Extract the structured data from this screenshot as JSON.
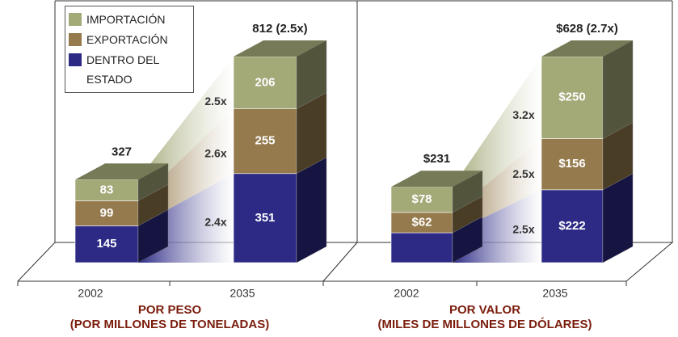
{
  "chart_data": [
    {
      "type": "bar3d_stacked",
      "title": "POR PESO",
      "subtitle": "(POR MILLONES DE TONELADAS)",
      "legend": "upper left",
      "categories": [
        "2002",
        "2035"
      ],
      "series": [
        {
          "name": "IMPORTACIÓN",
          "color": "#a4a978",
          "values": [
            83,
            206
          ],
          "growth_label": "2.5x"
        },
        {
          "name": "EXPORTACIÓN",
          "color": "#957a4d",
          "values": [
            99,
            255
          ],
          "growth_label": "2.6x"
        },
        {
          "name": "DENTRO DEL ESTADO",
          "color": "#2c2a85",
          "values": [
            145,
            351
          ],
          "growth_label": "2.4x"
        }
      ],
      "total_labels": [
        "327",
        "812 (2.5x)"
      ]
    },
    {
      "type": "bar3d_stacked",
      "title": "POR VALOR",
      "subtitle": "(MILES DE MILLONES DE DÓLARES)",
      "categories": [
        "2002",
        "2035"
      ],
      "series": [
        {
          "color": "#a4a978",
          "values": [
            78,
            250
          ],
          "value_labels": [
            "$78",
            "$250"
          ],
          "growth_label": "3.2x"
        },
        {
          "color": "#957a4d",
          "values": [
            62,
            156
          ],
          "value_labels": [
            "$62",
            "$156"
          ],
          "growth_label": "2.5x"
        },
        {
          "color": "#2c2a85",
          "values": [
            91,
            222
          ],
          "value_labels": [
            null,
            "$222"
          ],
          "growth_label": "2.5x"
        }
      ],
      "total_labels": [
        "$231",
        "$628 (2.7x)"
      ]
    }
  ]
}
